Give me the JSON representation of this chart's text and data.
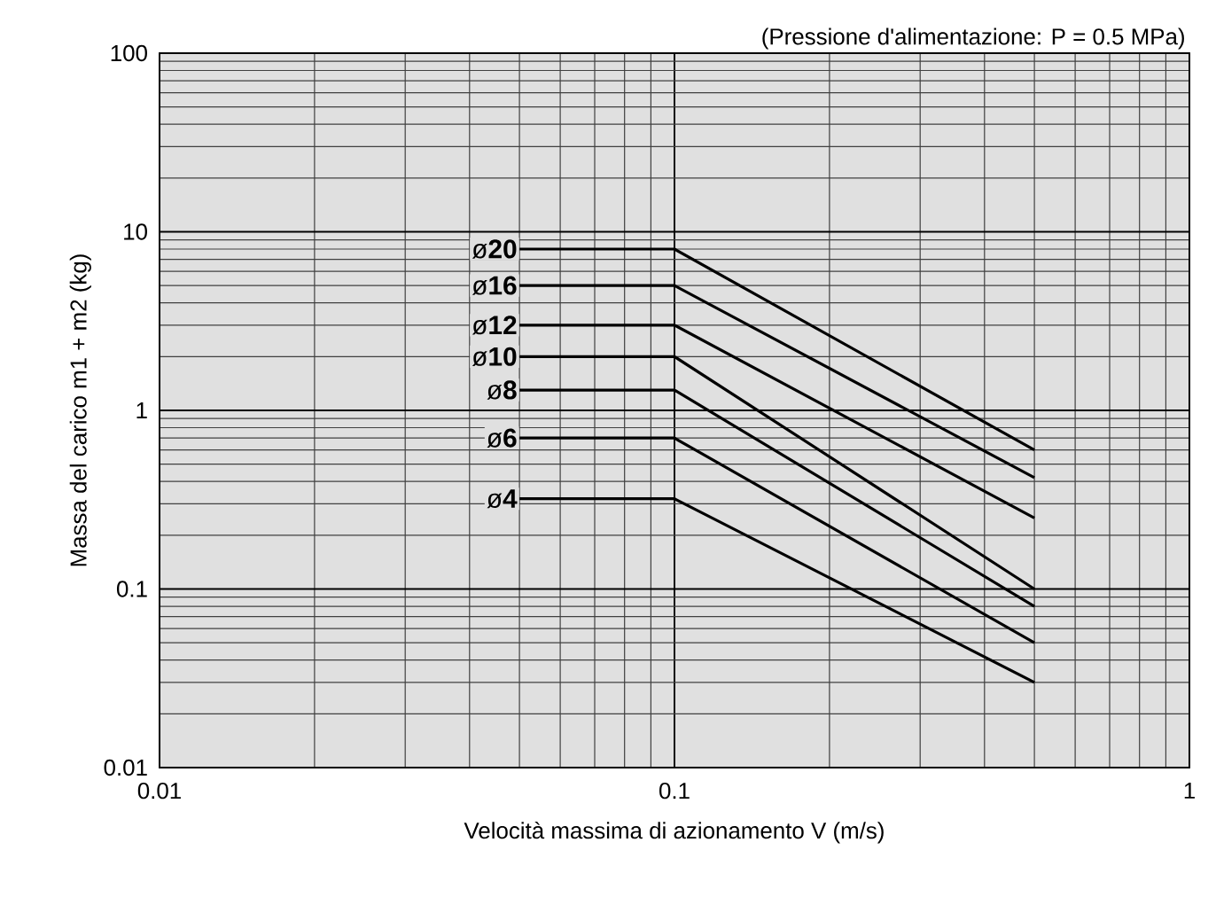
{
  "chart_data": {
    "type": "line",
    "xlabel": "Velocità massima di azionamento V (m/s)",
    "ylabel": "Massa del carico m1 + m2 (kg)",
    "annotations": [
      "(Pressione d'alimentazione: P = 0.5 MPa)"
    ],
    "log": "xy",
    "grid": true,
    "marker": "none",
    "line_style": "solid",
    "xlim": [
      0.01,
      1
    ],
    "ylim": [
      0.01,
      100
    ],
    "xticks": [
      0.01,
      0.1,
      1
    ],
    "yticks": [
      0.01,
      0.1,
      1,
      10,
      100
    ],
    "x": [
      0.05,
      0.1,
      0.5
    ],
    "series": [
      {
        "name": "ø**20**",
        "color": "#000000",
        "values": [
          8,
          8,
          0.6
        ]
      },
      {
        "name": "ø**16**",
        "color": "#000000",
        "values": [
          5,
          5,
          0.42
        ]
      },
      {
        "name": "ø**12**",
        "color": "#000000",
        "values": [
          3,
          3,
          0.25
        ]
      },
      {
        "name": "ø**10**",
        "color": "#000000",
        "values": [
          2,
          2,
          0.1
        ]
      },
      {
        "name": "ø**8**",
        "color": "#000000",
        "values": [
          1.3,
          1.3,
          0.08
        ]
      },
      {
        "name": "ø**6**",
        "color": "#000000",
        "values": [
          0.7,
          0.7,
          0.05
        ]
      },
      {
        "name": "ø**4**",
        "color": "#000000",
        "values": [
          0.32,
          0.32,
          0.03
        ]
      }
    ]
  }
}
